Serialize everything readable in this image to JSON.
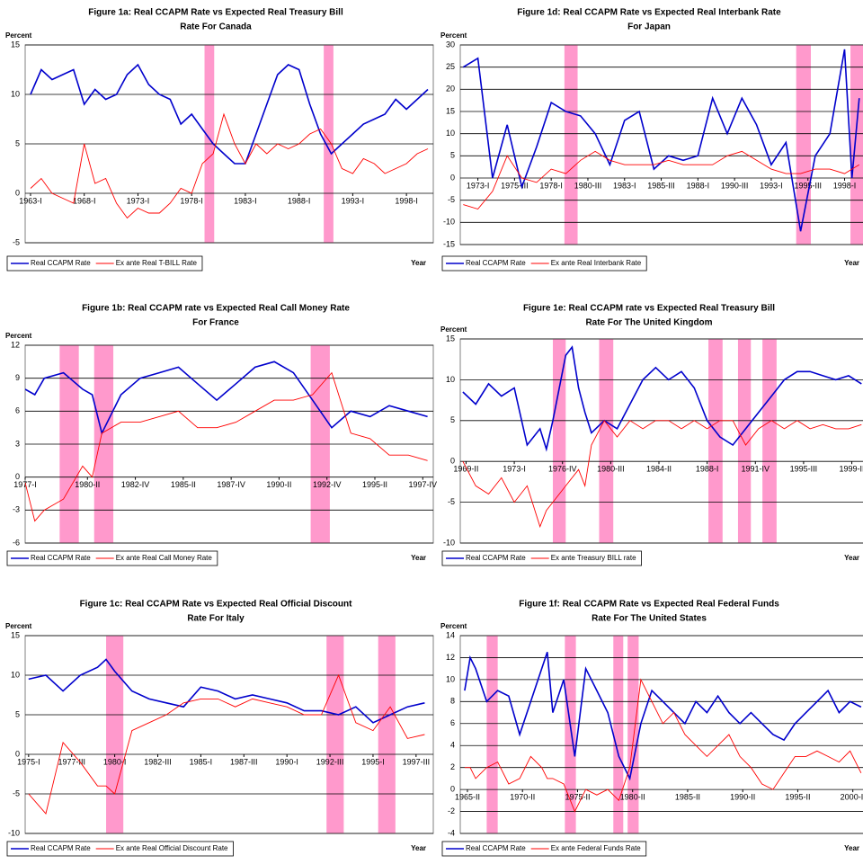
{
  "chart_data": [
    {
      "type": "line",
      "title": [
        "Figure 1a: Real CCAPM Rate vs Expected Real Treasury Bill",
        "Rate For Canada"
      ],
      "y_label": "Percent",
      "x_label": "Year",
      "x": [
        1963,
        1964,
        1965,
        1966,
        1967,
        1968,
        1969,
        1970,
        1971,
        1972,
        1973,
        1974,
        1975,
        1976,
        1977,
        1978,
        1979,
        1980,
        1981,
        1982,
        1983,
        1984,
        1985,
        1986,
        1987,
        1988,
        1989,
        1990,
        1991,
        1992,
        1993,
        1994,
        1995,
        1996,
        1997,
        1998,
        1999,
        2000
      ],
      "series": [
        {
          "name": "Real CCAPM Rate",
          "color": "#0000cc",
          "values": [
            10,
            12.5,
            11.5,
            12,
            12.5,
            9,
            10.5,
            9.5,
            10,
            12,
            13,
            11,
            10,
            9.5,
            7,
            8,
            6.5,
            5,
            4,
            3,
            3,
            6,
            9,
            12,
            13,
            12.5,
            9,
            6,
            4,
            5,
            6,
            7,
            7.5,
            8,
            9.5,
            8.5,
            9.5,
            10.5
          ]
        },
        {
          "name": "Ex ante Real T-BILL Rate",
          "color": "#ff0000",
          "values": [
            0.5,
            1.5,
            0,
            -0.5,
            -1,
            5,
            1,
            1.5,
            -1,
            -2.5,
            -1.5,
            -2,
            -2,
            -1,
            0.5,
            0,
            3,
            4,
            8,
            5,
            3,
            5,
            4,
            5,
            4.5,
            5,
            6,
            6.5,
            5,
            2.5,
            2,
            3.5,
            3,
            2,
            2.5,
            3,
            4,
            4.5
          ]
        }
      ],
      "xlim": [
        1962.5,
        2000.5
      ],
      "ylim": [
        -5,
        15
      ],
      "yticks": [
        -5,
        0,
        5,
        10,
        15
      ],
      "xticks": [
        {
          "value": 1963,
          "label": "1963-I"
        },
        {
          "value": 1968,
          "label": "1968-I"
        },
        {
          "value": 1973,
          "label": "1973-I"
        },
        {
          "value": 1978,
          "label": "1978-I"
        },
        {
          "value": 1983,
          "label": "1983-I"
        },
        {
          "value": 1988,
          "label": "1988-I"
        },
        {
          "value": 1993,
          "label": "1993-I"
        },
        {
          "value": 1998,
          "label": "1998-I"
        }
      ],
      "shaded": [
        [
          1979.2,
          1980.1
        ],
        [
          1990.3,
          1991.2
        ]
      ],
      "shade_color": "#ff99cc",
      "grid": true
    },
    {
      "type": "line",
      "title": [
        "Figure 1b: Real CCAPM rate vs Expected Real Call Money Rate",
        "For France"
      ],
      "y_label": "Percent",
      "x_label": "Year",
      "x": [
        1977,
        1977.5,
        1978,
        1979,
        1980,
        1980.5,
        1981,
        1982,
        1983,
        1984,
        1985,
        1986,
        1987,
        1988,
        1989,
        1990,
        1991,
        1992,
        1993,
        1994,
        1995,
        1996,
        1997,
        1998
      ],
      "series": [
        {
          "name": "Real CCAPM Rate",
          "color": "#0000cc",
          "values": [
            8,
            7.5,
            9,
            9.5,
            8,
            7.5,
            4,
            7.5,
            9,
            9.5,
            10,
            8.5,
            7,
            8.5,
            10,
            10.5,
            9.5,
            7,
            4.5,
            6,
            5.5,
            6.5,
            6,
            5.5
          ]
        },
        {
          "name": "Ex ante Real Call Money Rate",
          "color": "#ff0000",
          "values": [
            -0.5,
            -4,
            -3,
            -2,
            1,
            0,
            4,
            5,
            5,
            5.5,
            6,
            4.5,
            4.5,
            5,
            6,
            7,
            7,
            7.5,
            9.5,
            4,
            3.5,
            2,
            2,
            1.5
          ]
        }
      ],
      "xlim": [
        1977,
        1998.3
      ],
      "ylim": [
        -6,
        12
      ],
      "yticks": [
        -6,
        -3,
        0,
        3,
        6,
        9,
        12
      ],
      "xticks": [
        {
          "value": 1977,
          "label": "1977-I"
        },
        {
          "value": 1980.25,
          "label": "1980-II"
        },
        {
          "value": 1982.75,
          "label": "1982-IV"
        },
        {
          "value": 1985.25,
          "label": "1985-II"
        },
        {
          "value": 1987.75,
          "label": "1987-IV"
        },
        {
          "value": 1990.25,
          "label": "1990-II"
        },
        {
          "value": 1992.75,
          "label": "1992-IV"
        },
        {
          "value": 1995.25,
          "label": "1995-II"
        },
        {
          "value": 1997.75,
          "label": "1997-IV"
        }
      ],
      "shaded": [
        [
          1978.8,
          1979.8
        ],
        [
          1980.6,
          1981.6
        ],
        [
          1991.9,
          1992.9
        ]
      ],
      "shade_color": "#ff99cc",
      "grid": true
    },
    {
      "type": "line",
      "title": [
        "Figure 1c: Real CCAPM Rate vs Expected Real Official Discount",
        "Rate For Italy"
      ],
      "y_label": "Percent",
      "x_label": "Year",
      "x": [
        1975,
        1976,
        1977,
        1978,
        1979,
        1979.5,
        1980,
        1981,
        1982,
        1983,
        1984,
        1985,
        1986,
        1987,
        1988,
        1989,
        1990,
        1991,
        1992,
        1993,
        1994,
        1995,
        1996,
        1997,
        1998
      ],
      "series": [
        {
          "name": "Real CCAPM Rate",
          "color": "#0000cc",
          "values": [
            9.5,
            10,
            8,
            10,
            11,
            12,
            10.5,
            8,
            7,
            6.5,
            6,
            8.5,
            8,
            7,
            7.5,
            7,
            6.5,
            5.5,
            5.5,
            5,
            6,
            4,
            5,
            6,
            6.5
          ]
        },
        {
          "name": "Ex ante Real Official Discount Rate",
          "color": "#ff0000",
          "values": [
            -5,
            -7.5,
            1.5,
            -1,
            -4,
            -4,
            -5,
            3,
            4,
            5,
            6.5,
            7,
            7,
            6,
            7,
            6.5,
            6,
            5,
            5,
            10,
            4,
            3,
            6,
            2,
            2.5
          ]
        }
      ],
      "xlim": [
        1974.8,
        1998.5
      ],
      "ylim": [
        -10,
        15
      ],
      "yticks": [
        -10,
        -5,
        0,
        5,
        10,
        15
      ],
      "xticks": [
        {
          "value": 1975,
          "label": "1975-I"
        },
        {
          "value": 1977.5,
          "label": "1977-III"
        },
        {
          "value": 1980,
          "label": "1980-I"
        },
        {
          "value": 1982.5,
          "label": "1982-III"
        },
        {
          "value": 1985,
          "label": "1985-I"
        },
        {
          "value": 1987.5,
          "label": "1987-III"
        },
        {
          "value": 1990,
          "label": "1990-I"
        },
        {
          "value": 1992.5,
          "label": "1992-III"
        },
        {
          "value": 1995,
          "label": "1995-I"
        },
        {
          "value": 1997.5,
          "label": "1997-III"
        }
      ],
      "shaded": [
        [
          1979.5,
          1980.5
        ],
        [
          1992.3,
          1993.3
        ],
        [
          1995.3,
          1996.3
        ]
      ],
      "shade_color": "#ff99cc",
      "grid": true
    },
    {
      "type": "line",
      "title": [
        "Figure 1d: Real CCAPM Rate vs Expected Real Interbank Rate",
        "For Japan"
      ],
      "y_label": "Percent",
      "x_label": "Year",
      "x": [
        1972,
        1973,
        1974,
        1975,
        1976,
        1977,
        1978,
        1979,
        1980,
        1981,
        1982,
        1983,
        1984,
        1985,
        1986,
        1987,
        1988,
        1989,
        1990,
        1991,
        1992,
        1993,
        1994,
        1995,
        1996,
        1997,
        1998,
        1998.5,
        1999
      ],
      "series": [
        {
          "name": "Real CCAPM Rate",
          "color": "#0000cc",
          "values": [
            25,
            27,
            0,
            12,
            -2,
            7,
            17,
            15,
            14,
            10,
            3,
            13,
            15,
            2,
            5,
            4,
            5,
            18,
            10,
            18,
            12,
            3,
            8,
            -12,
            5,
            10,
            29,
            0,
            18
          ]
        },
        {
          "name": "Ex ante Real Interbank Rate",
          "color": "#ff0000",
          "values": [
            -6,
            -7,
            -3,
            5,
            0,
            -1,
            2,
            1,
            4,
            6,
            4,
            3,
            3,
            3,
            4,
            3,
            3,
            3,
            5,
            6,
            4,
            2,
            1,
            1,
            2,
            2,
            1,
            2,
            3
          ]
        }
      ],
      "xlim": [
        1971.8,
        1999.5
      ],
      "ylim": [
        -15,
        30
      ],
      "yticks": [
        -15,
        -10,
        -5,
        0,
        5,
        10,
        15,
        20,
        25,
        30
      ],
      "xticks": [
        {
          "value": 1973,
          "label": "1973-I"
        },
        {
          "value": 1975.5,
          "label": "1975-III"
        },
        {
          "value": 1978,
          "label": "1978-I"
        },
        {
          "value": 1980.5,
          "label": "1980-III"
        },
        {
          "value": 1983,
          "label": "1983-I"
        },
        {
          "value": 1985.5,
          "label": "1985-III"
        },
        {
          "value": 1988,
          "label": "1988-I"
        },
        {
          "value": 1990.5,
          "label": "1990-III"
        },
        {
          "value": 1993,
          "label": "1993-I"
        },
        {
          "value": 1995.5,
          "label": "1995-III"
        },
        {
          "value": 1998,
          "label": "1998-I"
        }
      ],
      "shaded": [
        [
          1978.9,
          1979.8
        ],
        [
          1994.7,
          1995.7
        ],
        [
          1998.4,
          1999.4
        ]
      ],
      "shade_color": "#ff99cc",
      "grid": true
    },
    {
      "type": "line",
      "title": [
        "Figure 1e: Real CCAPM rate vs Expected Real Treasury Bill",
        "Rate For The United Kingdom"
      ],
      "y_label": "Percent",
      "x_label": "Year",
      "x": [
        1969,
        1970,
        1971,
        1972,
        1973,
        1974,
        1975,
        1975.5,
        1976,
        1977,
        1977.5,
        1978,
        1978.5,
        1979,
        1980,
        1981,
        1982,
        1983,
        1984,
        1985,
        1986,
        1987,
        1988,
        1989,
        1990,
        1991,
        1992,
        1993,
        1994,
        1995,
        1996,
        1997,
        1998,
        1999,
        2000
      ],
      "series": [
        {
          "name": "Real CCAPM Rate",
          "color": "#0000cc",
          "values": [
            8.5,
            7,
            9.5,
            8,
            9,
            2,
            4,
            1.5,
            5,
            13,
            14,
            9,
            6,
            3.5,
            5,
            4,
            7,
            10,
            11.5,
            10,
            11,
            9,
            5,
            3,
            2,
            4,
            6,
            8,
            10,
            11,
            11,
            10.5,
            10,
            10.5,
            9.5
          ]
        },
        {
          "name": "Ex ante Treasury BILL rate",
          "color": "#ff0000",
          "values": [
            0,
            -3,
            -4,
            -2,
            -5,
            -3,
            -8,
            -6,
            -5,
            -3,
            -2,
            -1,
            -3,
            2,
            5,
            3,
            5,
            4,
            5,
            5,
            4,
            5,
            4,
            5,
            5,
            2,
            4,
            5,
            4,
            5,
            4,
            4.5,
            4,
            4,
            4.5
          ]
        }
      ],
      "xlim": [
        1968.8,
        2000.4
      ],
      "ylim": [
        -10,
        15
      ],
      "yticks": [
        -10,
        -5,
        0,
        5,
        10,
        15
      ],
      "xticks": [
        {
          "value": 1969.25,
          "label": "1969-II"
        },
        {
          "value": 1973,
          "label": "1973-I"
        },
        {
          "value": 1976.75,
          "label": "1976-IV"
        },
        {
          "value": 1980.5,
          "label": "1980-III"
        },
        {
          "value": 1984.25,
          "label": "1984-II"
        },
        {
          "value": 1988,
          "label": "1988-I"
        },
        {
          "value": 1991.75,
          "label": "1991-IV"
        },
        {
          "value": 1995.5,
          "label": "1995-III"
        },
        {
          "value": 1999.25,
          "label": "1999-II"
        }
      ],
      "shaded": [
        [
          1976,
          1977
        ],
        [
          1979.6,
          1980.7
        ],
        [
          1988.1,
          1989.2
        ],
        [
          1990.4,
          1991.4
        ],
        [
          1992.3,
          1993.4
        ]
      ],
      "shade_color": "#ff99cc",
      "grid": true
    },
    {
      "type": "line",
      "title": [
        "Figure 1f: Real CCAPM Rate vs Expected Real Federal Funds",
        "Rate For The United States"
      ],
      "y_label": "Percent",
      "x_label": "Year",
      "x": [
        1965,
        1965.5,
        1966,
        1967,
        1968,
        1969,
        1970,
        1971,
        1972,
        1972.5,
        1973,
        1974,
        1975,
        1976,
        1977,
        1978,
        1979,
        1980,
        1981,
        1982,
        1983,
        1984,
        1985,
        1986,
        1987,
        1988,
        1989,
        1990,
        1991,
        1992,
        1993,
        1994,
        1995,
        1996,
        1997,
        1998,
        1999,
        2000,
        2001
      ],
      "series": [
        {
          "name": "Real CCAPM Rate",
          "color": "#0000cc",
          "values": [
            9,
            12,
            11,
            8,
            9,
            8.5,
            5,
            8,
            11,
            12.5,
            7,
            10,
            3,
            11,
            9,
            7,
            3,
            1,
            6,
            9,
            8,
            7,
            6,
            8,
            7,
            8.5,
            7,
            6,
            7,
            6,
            5,
            4.5,
            6,
            7,
            8,
            9,
            7,
            8,
            7.5
          ]
        },
        {
          "name": "Ex ante Federal Funds Rate",
          "color": "#ff0000",
          "values": [
            2,
            2,
            1,
            2,
            2.5,
            0.5,
            1,
            3,
            2,
            1,
            1,
            0.5,
            -2,
            0,
            -0.5,
            0,
            -1,
            2,
            10,
            8,
            6,
            7,
            5,
            4,
            3,
            4,
            5,
            3,
            2,
            0.5,
            0,
            1.5,
            3,
            3,
            3.5,
            3,
            2.5,
            3.5,
            1.5
          ]
        }
      ],
      "xlim": [
        1964.6,
        2001.5
      ],
      "ylim": [
        -4,
        14
      ],
      "yticks": [
        -4,
        -2,
        0,
        2,
        4,
        6,
        8,
        10,
        12,
        14
      ],
      "xticks": [
        {
          "value": 1965.25,
          "label": "1965-II"
        },
        {
          "value": 1970.25,
          "label": "1970-II"
        },
        {
          "value": 1975.25,
          "label": "1975-II"
        },
        {
          "value": 1980.25,
          "label": "1980-II"
        },
        {
          "value": 1985.25,
          "label": "1985-II"
        },
        {
          "value": 1990.25,
          "label": "1990-II"
        },
        {
          "value": 1995.25,
          "label": "1995-II"
        },
        {
          "value": 2000.25,
          "label": "2000-II"
        }
      ],
      "shaded": [
        [
          1967,
          1968
        ],
        [
          1974.1,
          1975.1
        ],
        [
          1978.5,
          1979.4
        ],
        [
          1979.8,
          1980.8
        ]
      ],
      "shade_color": "#ff99cc",
      "grid": true
    }
  ]
}
